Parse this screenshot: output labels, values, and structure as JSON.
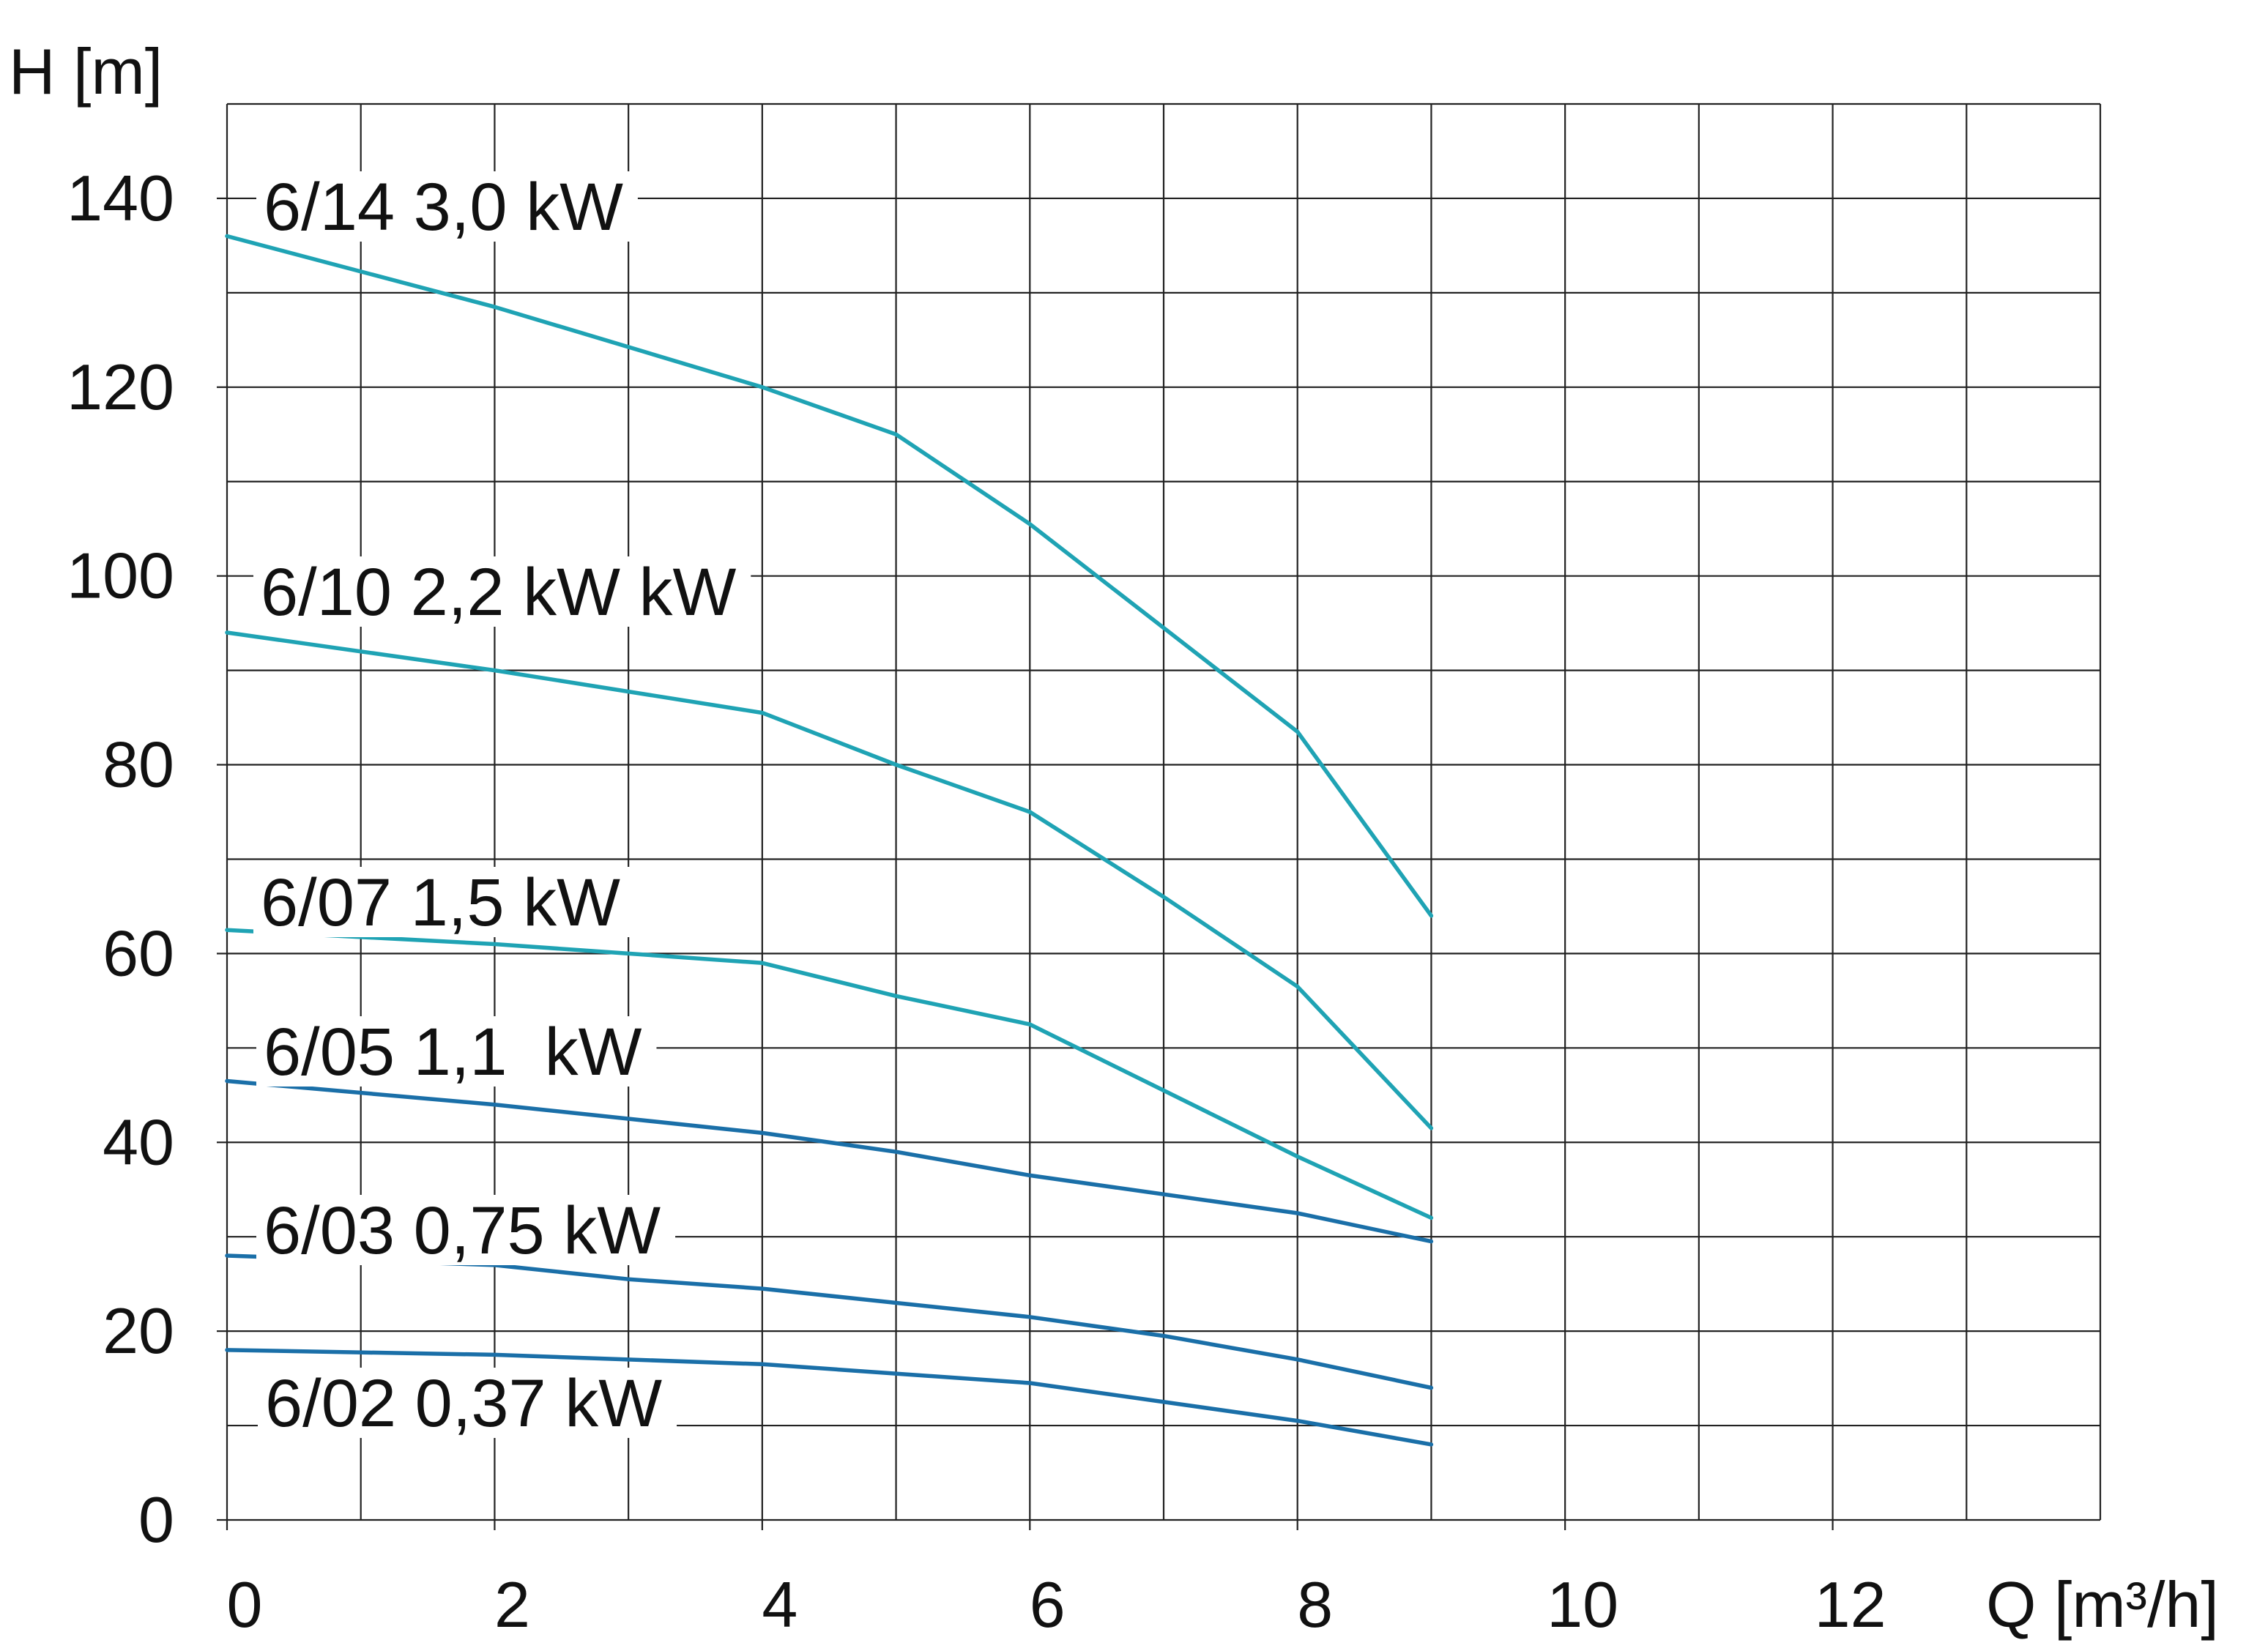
{
  "chart_data": {
    "type": "line",
    "ylabel": "H [m]",
    "xlabel": "Q [m³/h]",
    "xlim": [
      0,
      14
    ],
    "ylim": [
      0,
      150
    ],
    "x_ticks": [
      0,
      2,
      4,
      6,
      8,
      10,
      12
    ],
    "y_ticks": [
      0,
      20,
      40,
      60,
      80,
      100,
      120,
      140
    ],
    "grid": true,
    "colors": {
      "teal": "#1fa3b4",
      "blue": "#1a6fa8",
      "grid": "#222222"
    },
    "series": [
      {
        "name": "6/14 3,0 kW",
        "color": "#1fa3b4",
        "points": [
          [
            0,
            136
          ],
          [
            2,
            128.5
          ],
          [
            4,
            120
          ],
          [
            5,
            115
          ],
          [
            6,
            105.5
          ],
          [
            7,
            94.5
          ],
          [
            8,
            83.5
          ],
          [
            9,
            64
          ]
        ]
      },
      {
        "name": "6/10 2,2 kW kW",
        "color": "#1fa3b4",
        "points": [
          [
            0,
            94
          ],
          [
            2,
            90
          ],
          [
            4,
            85.5
          ],
          [
            5,
            80
          ],
          [
            6,
            75
          ],
          [
            7,
            66
          ],
          [
            8,
            56.5
          ],
          [
            9,
            41.5
          ]
        ]
      },
      {
        "name": "6/07 1,5 kW",
        "color": "#1fa3b4",
        "points": [
          [
            0,
            62.5
          ],
          [
            2,
            61
          ],
          [
            3,
            60
          ],
          [
            4,
            59
          ],
          [
            5,
            55.5
          ],
          [
            6,
            52.5
          ],
          [
            7,
            45.5
          ],
          [
            8,
            38.5
          ],
          [
            9,
            32
          ]
        ]
      },
      {
        "name": "6/05 1,1  kW",
        "color": "#1a6fa8",
        "points": [
          [
            0,
            46.5
          ],
          [
            2,
            44
          ],
          [
            4,
            41
          ],
          [
            5,
            39
          ],
          [
            6,
            36.5
          ],
          [
            8,
            32.5
          ],
          [
            9,
            29.5
          ]
        ]
      },
      {
        "name": "6/03 0,75 kW",
        "color": "#1a6fa8",
        "points": [
          [
            0,
            28
          ],
          [
            2,
            27
          ],
          [
            3,
            25.5
          ],
          [
            4,
            24.5
          ],
          [
            5,
            23
          ],
          [
            6,
            21.5
          ],
          [
            7,
            19.5
          ],
          [
            8,
            17
          ],
          [
            9,
            14
          ]
        ]
      },
      {
        "name": "6/02 0,37 kW",
        "color": "#1a6fa8",
        "points": [
          [
            0,
            18
          ],
          [
            2,
            17.5
          ],
          [
            4,
            16.5
          ],
          [
            6,
            14.5
          ],
          [
            8,
            10.5
          ],
          [
            9,
            8
          ]
        ]
      }
    ]
  }
}
